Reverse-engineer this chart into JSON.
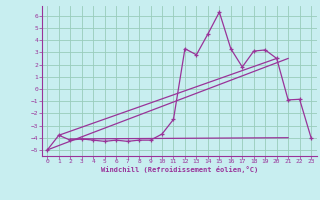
{
  "xlabel": "Windchill (Refroidissement éolien,°C)",
  "bg_color": "#c8eef0",
  "grid_color": "#99ccbb",
  "line_color": "#993399",
  "xlim": [
    -0.5,
    23.5
  ],
  "ylim": [
    -5.5,
    6.8
  ],
  "xticks": [
    0,
    1,
    2,
    3,
    4,
    5,
    6,
    7,
    8,
    9,
    10,
    11,
    12,
    13,
    14,
    15,
    16,
    17,
    18,
    19,
    20,
    21,
    22,
    23
  ],
  "yticks": [
    -5,
    -4,
    -3,
    -2,
    -1,
    0,
    1,
    2,
    3,
    4,
    5,
    6
  ],
  "data_line_x": [
    0,
    1,
    2,
    3,
    4,
    5,
    6,
    7,
    8,
    9,
    10,
    11,
    12,
    13,
    14,
    15,
    16,
    17,
    18,
    19,
    20,
    21,
    22,
    23
  ],
  "data_line_y": [
    -5.0,
    -3.8,
    -4.2,
    -4.1,
    -4.2,
    -4.3,
    -4.2,
    -4.3,
    -4.2,
    -4.2,
    -3.7,
    -2.5,
    3.3,
    2.8,
    4.5,
    6.3,
    3.3,
    1.8,
    3.1,
    3.2,
    2.5,
    -0.9,
    -0.85,
    -4.0
  ],
  "diag_line1_x": [
    0,
    21
  ],
  "diag_line1_y": [
    -5.0,
    2.5
  ],
  "diag_line2_x": [
    1,
    20
  ],
  "diag_line2_y": [
    -3.8,
    2.5
  ],
  "horiz_line_x": [
    2,
    21
  ],
  "horiz_line_y": [
    -4.1,
    -4.0
  ]
}
